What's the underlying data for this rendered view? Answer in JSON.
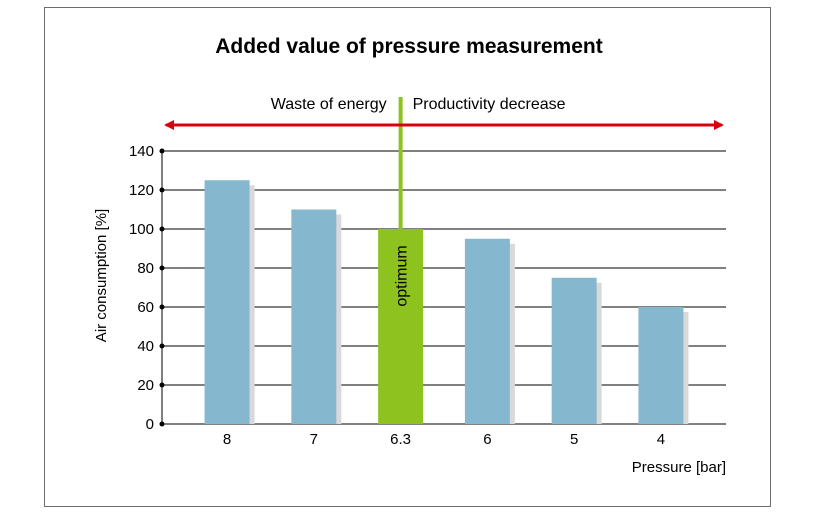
{
  "chart_data": {
    "type": "bar",
    "title": "Added value of pressure measurement",
    "xlabel": "Pressure [bar]",
    "ylabel": "Air consumption [%]",
    "categories": [
      "8",
      "7",
      "6.3",
      "6",
      "5",
      "4"
    ],
    "values": [
      125,
      110,
      100,
      95,
      75,
      60
    ],
    "ylim": [
      0,
      140
    ],
    "yticks": [
      0,
      20,
      40,
      60,
      80,
      100,
      120,
      140
    ],
    "grid": true,
    "highlight_index": 2,
    "highlight_label": "optimum",
    "left_annotation": "Waste of energy",
    "right_annotation": "Productivity decrease",
    "colors": {
      "bar": "#85b8ce",
      "bar_shadow": "#d9d9d9",
      "highlight": "#8dc21f",
      "arrow": "#d8000f",
      "grid": "#000000"
    }
  }
}
